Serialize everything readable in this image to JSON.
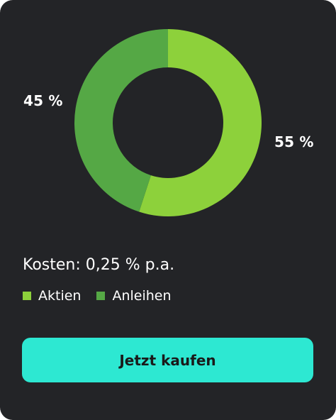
{
  "chart_data": {
    "type": "pie",
    "categories": [
      "Aktien",
      "Anleihen"
    ],
    "values": [
      55,
      45
    ],
    "value_labels": [
      "55 %",
      "45 %"
    ],
    "colors": [
      "#8dd13b",
      "#55a845"
    ],
    "donut": true,
    "title": ""
  },
  "cost": {
    "text": "Kosten: 0,25 % p.a."
  },
  "legend": {
    "items": [
      {
        "label": "Aktien",
        "color": "#8dd13b"
      },
      {
        "label": "Anleihen",
        "color": "#55a845"
      }
    ]
  },
  "button": {
    "label": "Jetzt kaufen",
    "color": "#2de8d2"
  }
}
